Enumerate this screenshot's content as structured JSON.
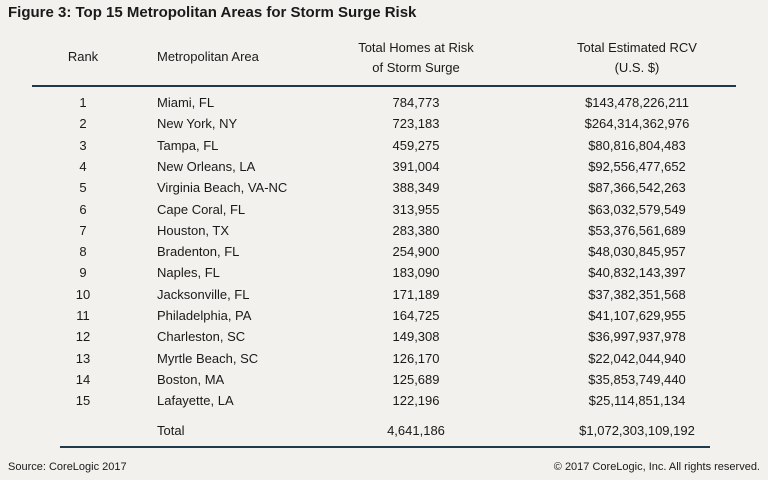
{
  "title": "Figure 3: Top 15 Metropolitan Areas for Storm Surge Risk",
  "table": {
    "headers": [
      [
        "Rank"
      ],
      [
        "Metropolitan Area"
      ],
      [
        "Total Homes at Risk",
        "of Storm Surge"
      ],
      [
        "Total Estimated RCV",
        "(U.S. $)"
      ]
    ],
    "rows": [
      [
        "1",
        "Miami, FL",
        "784,773",
        "$143,478,226,211"
      ],
      [
        "2",
        "New York, NY",
        "723,183",
        "$264,314,362,976"
      ],
      [
        "3",
        "Tampa, FL",
        "459,275",
        "$80,816,804,483"
      ],
      [
        "4",
        "New Orleans, LA",
        "391,004",
        "$92,556,477,652"
      ],
      [
        "5",
        "Virginia Beach, VA-NC",
        "388,349",
        "$87,366,542,263"
      ],
      [
        "6",
        "Cape Coral, FL",
        "313,955",
        "$63,032,579,549"
      ],
      [
        "7",
        "Houston, TX",
        "283,380",
        "$53,376,561,689"
      ],
      [
        "8",
        "Bradenton, FL",
        "254,900",
        "$48,030,845,957"
      ],
      [
        "9",
        "Naples, FL",
        "183,090",
        "$40,832,143,397"
      ],
      [
        "10",
        "Jacksonville, FL",
        "171,189",
        "$37,382,351,568"
      ],
      [
        "11",
        "Philadelphia, PA",
        "164,725",
        "$41,107,629,955"
      ],
      [
        "12",
        "Charleston, SC",
        "149,308",
        "$36,997,937,978"
      ],
      [
        "13",
        "Myrtle Beach, SC",
        "126,170",
        "$22,042,044,940"
      ],
      [
        "14",
        "Boston, MA",
        "125,689",
        "$35,853,749,440"
      ],
      [
        "15",
        "Lafayette, LA",
        "122,196",
        "$25,114,851,134"
      ]
    ],
    "total": [
      "Total",
      "4,641,186",
      "$1,072,303,109,192"
    ]
  },
  "footer": {
    "source": "Source: CoreLogic 2017",
    "copyright": "© 2017 CoreLogic, Inc. All rights reserved."
  }
}
